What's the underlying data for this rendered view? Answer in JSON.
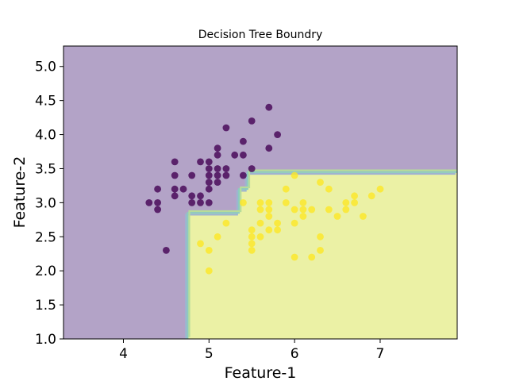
{
  "chart_data": {
    "type": "scatter",
    "title": "Decision Tree Boundry",
    "xlabel": "Feature-1",
    "ylabel": "Feature-2",
    "xlim": [
      3.3,
      7.9
    ],
    "ylim": [
      1.0,
      5.3
    ],
    "xticks": [
      "4",
      "5",
      "6",
      "7"
    ],
    "yticks": [
      "1.0",
      "1.5",
      "2.0",
      "2.5",
      "3.0",
      "3.5",
      "4.0",
      "4.5",
      "5.0"
    ],
    "grid": false,
    "regions": [
      {
        "class": 0,
        "color": "#b3a3c7"
      },
      {
        "class": 1,
        "color": "#ebf1a5"
      }
    ],
    "decision_boundary": [
      [
        4.75,
        1.0
      ],
      [
        4.75,
        2.85
      ],
      [
        5.35,
        2.85
      ],
      [
        5.35,
        3.2
      ],
      [
        5.45,
        3.2
      ],
      [
        5.45,
        3.45
      ],
      [
        7.9,
        3.45
      ]
    ],
    "series": [
      {
        "class": 0,
        "color": "#440154",
        "points": [
          [
            4.3,
            3.0
          ],
          [
            4.4,
            2.9
          ],
          [
            4.4,
            3.0
          ],
          [
            4.4,
            3.2
          ],
          [
            4.5,
            2.3
          ],
          [
            4.6,
            3.1
          ],
          [
            4.6,
            3.2
          ],
          [
            4.6,
            3.4
          ],
          [
            4.6,
            3.6
          ],
          [
            4.7,
            3.2
          ],
          [
            4.8,
            3.0
          ],
          [
            4.8,
            3.1
          ],
          [
            4.8,
            3.4
          ],
          [
            4.9,
            3.0
          ],
          [
            4.9,
            3.1
          ],
          [
            4.9,
            3.6
          ],
          [
            5.0,
            3.0
          ],
          [
            5.0,
            3.2
          ],
          [
            5.0,
            3.3
          ],
          [
            5.0,
            3.4
          ],
          [
            5.0,
            3.5
          ],
          [
            5.0,
            3.6
          ],
          [
            5.1,
            3.3
          ],
          [
            5.1,
            3.4
          ],
          [
            5.1,
            3.5
          ],
          [
            5.1,
            3.7
          ],
          [
            5.1,
            3.8
          ],
          [
            5.2,
            3.4
          ],
          [
            5.2,
            3.5
          ],
          [
            5.2,
            4.1
          ],
          [
            5.3,
            3.7
          ],
          [
            5.4,
            3.4
          ],
          [
            5.4,
            3.7
          ],
          [
            5.4,
            3.9
          ],
          [
            5.5,
            3.5
          ],
          [
            5.5,
            4.2
          ],
          [
            5.7,
            3.8
          ],
          [
            5.7,
            4.4
          ],
          [
            5.8,
            4.0
          ]
        ]
      },
      {
        "class": 1,
        "color": "#fde725",
        "points": [
          [
            4.9,
            2.4
          ],
          [
            5.0,
            2.0
          ],
          [
            5.0,
            2.3
          ],
          [
            5.1,
            2.5
          ],
          [
            5.2,
            2.7
          ],
          [
            5.4,
            3.0
          ],
          [
            5.5,
            2.3
          ],
          [
            5.5,
            2.4
          ],
          [
            5.5,
            2.5
          ],
          [
            5.5,
            2.6
          ],
          [
            5.6,
            2.5
          ],
          [
            5.6,
            2.7
          ],
          [
            5.6,
            2.9
          ],
          [
            5.6,
            3.0
          ],
          [
            5.7,
            2.6
          ],
          [
            5.7,
            2.8
          ],
          [
            5.7,
            2.9
          ],
          [
            5.7,
            3.0
          ],
          [
            5.8,
            2.6
          ],
          [
            5.8,
            2.7
          ],
          [
            5.9,
            3.0
          ],
          [
            5.9,
            3.2
          ],
          [
            6.0,
            2.2
          ],
          [
            6.0,
            2.7
          ],
          [
            6.0,
            2.9
          ],
          [
            6.0,
            3.4
          ],
          [
            6.1,
            2.8
          ],
          [
            6.1,
            2.9
          ],
          [
            6.1,
            3.0
          ],
          [
            6.2,
            2.2
          ],
          [
            6.2,
            2.9
          ],
          [
            6.3,
            2.3
          ],
          [
            6.3,
            2.5
          ],
          [
            6.3,
            3.3
          ],
          [
            6.4,
            2.9
          ],
          [
            6.4,
            3.2
          ],
          [
            6.5,
            2.8
          ],
          [
            6.6,
            2.9
          ],
          [
            6.6,
            3.0
          ],
          [
            6.7,
            3.0
          ],
          [
            6.7,
            3.1
          ],
          [
            6.8,
            2.8
          ],
          [
            6.9,
            3.1
          ],
          [
            7.0,
            3.2
          ]
        ]
      }
    ]
  }
}
